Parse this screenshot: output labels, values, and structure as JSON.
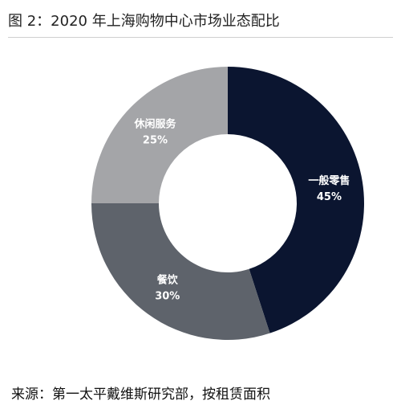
{
  "figure": {
    "title": "图 2：2020 年上海购物中心市场业态配比",
    "source": "来源：第一太平戴维斯研究部，按租赁面积"
  },
  "chart_data": {
    "type": "pie",
    "donut": true,
    "start_angle_deg": 0,
    "direction": "clockwise",
    "slices": [
      {
        "label": "一般零售",
        "value": 45,
        "display": "45%",
        "color": "#0b1530",
        "text_color": "#ffffff"
      },
      {
        "label": "餐饮",
        "value": 30,
        "display": "30%",
        "color": "#5e636b",
        "text_color": "#ffffff"
      },
      {
        "label": "休闲服务",
        "value": 25,
        "display": "25%",
        "color": "#a4a5a8",
        "text_color": "#ffffff"
      }
    ]
  }
}
